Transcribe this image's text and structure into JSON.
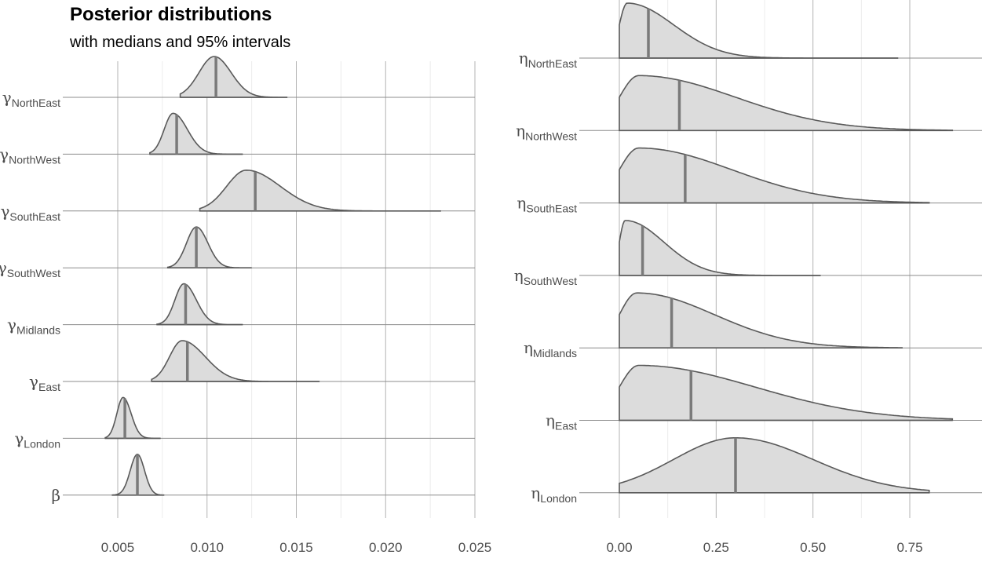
{
  "header": {
    "title": "Posterior distributions",
    "subtitle": "with medians and 95% intervals"
  },
  "chart_data": [
    {
      "type": "ridgeline",
      "panel": "left",
      "xlim": [
        0.0025,
        0.025
      ],
      "xticks": [
        0.005,
        0.01,
        0.015,
        0.02,
        0.025
      ],
      "xtick_labels": [
        "0.005",
        "0.010",
        "0.015",
        "0.020",
        "0.025"
      ],
      "grid": true,
      "rows": [
        {
          "sym": "γ",
          "sub": "NorthEast",
          "mode": 0.0104,
          "median": 0.0105,
          "lo": 0.0085,
          "hi": 0.0145,
          "sl": 0.00085,
          "sr": 0.00095
        },
        {
          "sym": "γ",
          "sub": "NorthWest",
          "mode": 0.0081,
          "median": 0.0083,
          "lo": 0.0068,
          "hi": 0.012,
          "sl": 0.0005,
          "sr": 0.0008
        },
        {
          "sym": "γ",
          "sub": "SouthEast",
          "mode": 0.0122,
          "median": 0.0127,
          "lo": 0.0096,
          "hi": 0.0231,
          "sl": 0.0011,
          "sr": 0.0019
        },
        {
          "sym": "γ",
          "sub": "SouthWest",
          "mode": 0.0094,
          "median": 0.0094,
          "lo": 0.0078,
          "hi": 0.0125,
          "sl": 0.00055,
          "sr": 0.00065
        },
        {
          "sym": "γ",
          "sub": "Midlands",
          "mode": 0.0087,
          "median": 0.0088,
          "lo": 0.0072,
          "hi": 0.012,
          "sl": 0.0005,
          "sr": 0.0007
        },
        {
          "sym": "γ",
          "sub": "East",
          "mode": 0.0086,
          "median": 0.0089,
          "lo": 0.0069,
          "hi": 0.0163,
          "sl": 0.0007,
          "sr": 0.0013
        },
        {
          "sym": "γ",
          "sub": "London",
          "mode": 0.0053,
          "median": 0.0054,
          "lo": 0.0043,
          "hi": 0.0074,
          "sl": 0.00035,
          "sr": 0.00045
        },
        {
          "sym": "β",
          "sub": "",
          "mode": 0.0061,
          "median": 0.0061,
          "lo": 0.0047,
          "hi": 0.0076,
          "sl": 0.0004,
          "sr": 0.0004
        }
      ]
    },
    {
      "type": "ridgeline",
      "panel": "right",
      "xlim": [
        0.0,
        0.8
      ],
      "xticks": [
        0.0,
        0.25,
        0.5,
        0.75
      ],
      "xtick_labels": [
        "0.00",
        "0.25",
        "0.50",
        "0.75"
      ],
      "grid": true,
      "rows": [
        {
          "sym": "η",
          "sub": "NorthEast",
          "mode": 0.02,
          "median": 0.075,
          "lo": 0.0,
          "hi": 0.72,
          "sl": 0.02,
          "sr": 0.12
        },
        {
          "sym": "η",
          "sub": "NorthWest",
          "mode": 0.05,
          "median": 0.155,
          "lo": 0.0,
          "hi": 0.86,
          "sl": 0.05,
          "sr": 0.25
        },
        {
          "sym": "η",
          "sub": "SouthEast",
          "mode": 0.05,
          "median": 0.17,
          "lo": 0.0,
          "hi": 0.8,
          "sl": 0.05,
          "sr": 0.24
        },
        {
          "sym": "η",
          "sub": "SouthWest",
          "mode": 0.015,
          "median": 0.06,
          "lo": 0.0,
          "hi": 0.52,
          "sl": 0.015,
          "sr": 0.1
        },
        {
          "sym": "η",
          "sub": "Midlands",
          "mode": 0.045,
          "median": 0.135,
          "lo": 0.0,
          "hi": 0.73,
          "sl": 0.045,
          "sr": 0.2
        },
        {
          "sym": "η",
          "sub": "East",
          "mode": 0.05,
          "median": 0.185,
          "lo": 0.0,
          "hi": 0.86,
          "sl": 0.05,
          "sr": 0.3
        },
        {
          "sym": "η",
          "sub": "London",
          "mode": 0.3,
          "median": 0.3,
          "lo": 0.0,
          "hi": 0.8,
          "sl": 0.16,
          "sr": 0.2
        }
      ]
    }
  ]
}
